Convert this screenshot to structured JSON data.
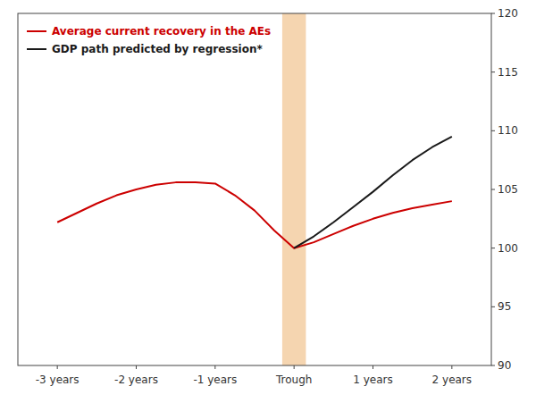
{
  "chart_data": {
    "type": "line",
    "series": [
      {
        "name": "Average current recovery in the AEs",
        "color": "#cc0000",
        "x": [
          -3,
          -2.75,
          -2.5,
          -2.25,
          -2,
          -1.75,
          -1.5,
          -1.25,
          -1,
          -0.75,
          -0.5,
          -0.25,
          0,
          0.25,
          0.5,
          0.75,
          1,
          1.25,
          1.5,
          1.75,
          2
        ],
        "values": [
          102.2,
          103.0,
          103.8,
          104.5,
          105.0,
          105.4,
          105.6,
          105.6,
          105.5,
          104.5,
          103.2,
          101.5,
          100.0,
          100.5,
          101.2,
          101.9,
          102.5,
          103.0,
          103.4,
          103.7,
          104.0
        ]
      },
      {
        "name": "GDP path predicted by regression*",
        "color": "#1a1a1a",
        "x": [
          0,
          0.25,
          0.5,
          0.75,
          1,
          1.25,
          1.5,
          1.75,
          2
        ],
        "values": [
          100.0,
          101.0,
          102.2,
          103.5,
          104.8,
          106.2,
          107.5,
          108.6,
          109.5
        ]
      }
    ],
    "bands": [
      {
        "x0": -0.15,
        "x1": 0.15,
        "color": "#f5d5b0"
      }
    ],
    "xlim": [
      -3.5,
      2.5
    ],
    "xticks": [
      {
        "value": -3,
        "label": "-3 years"
      },
      {
        "value": -2,
        "label": "-2 years"
      },
      {
        "value": -1,
        "label": "-1 years"
      },
      {
        "value": 0,
        "label": "Trough"
      },
      {
        "value": 1,
        "label": "1 years"
      },
      {
        "value": 2,
        "label": "2 years"
      }
    ],
    "ylim": [
      90,
      120
    ],
    "yticks": [
      90,
      95,
      100,
      105,
      110,
      115,
      120
    ],
    "grid": false,
    "legend": "upper left"
  }
}
